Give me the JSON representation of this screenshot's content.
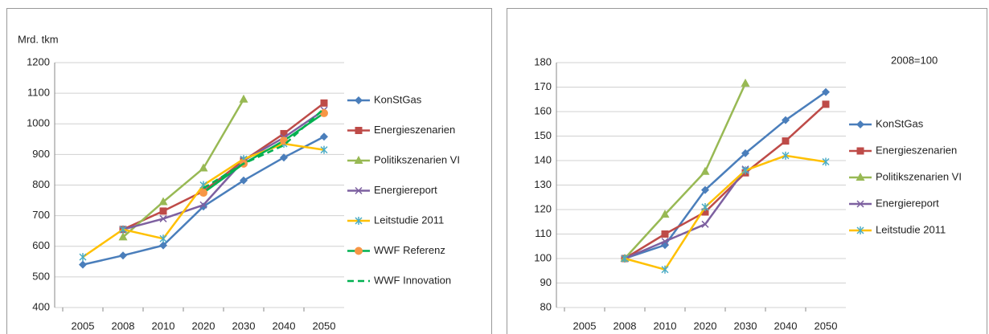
{
  "chart_data": [
    {
      "type": "line",
      "ylabel": "Mrd. tkm",
      "categories": [
        "2005",
        "2008",
        "2010",
        "2020",
        "2030",
        "2040",
        "2050"
      ],
      "ylim": [
        400,
        1200
      ],
      "yticks": [
        400,
        500,
        600,
        700,
        800,
        900,
        1000,
        1100,
        1200
      ],
      "grid": true,
      "legend": "right",
      "series": [
        {
          "name": "KonStGas",
          "color": "#4a7ebb",
          "marker": "diamond",
          "values": [
            540,
            570,
            603,
            730,
            815,
            890,
            958
          ]
        },
        {
          "name": "Energieszenarien",
          "color": "#be4b48",
          "marker": "square",
          "values": [
            null,
            655,
            715,
            780,
            880,
            968,
            1068
          ]
        },
        {
          "name": "Politikszenarien VI",
          "color": "#98b954",
          "marker": "triangle",
          "values": [
            null,
            630,
            745,
            855,
            1080,
            null,
            null
          ]
        },
        {
          "name": "Energiereport",
          "color": "#7d60a0",
          "marker": "x",
          "values": [
            null,
            655,
            690,
            735,
            880,
            955,
            1045
          ]
        },
        {
          "name": "Leitstudie 2011",
          "color": "#ffc000",
          "marker": "asterisk",
          "marker_color": "#4bacc6",
          "values": [
            565,
            655,
            625,
            800,
            885,
            935,
            915
          ]
        },
        {
          "name": "WWF Referenz",
          "color": "#00b050",
          "marker": "circle",
          "marker_color": "#f79646",
          "values": [
            null,
            null,
            null,
            775,
            870,
            945,
            1035
          ]
        },
        {
          "name": "WWF Innovation",
          "color": "#00b050",
          "marker": "none",
          "dash": true,
          "values": [
            null,
            null,
            null,
            790,
            870,
            930,
            1050
          ]
        }
      ]
    },
    {
      "type": "line",
      "annotation": "2008=100",
      "categories": [
        "2005",
        "2008",
        "2010",
        "2020",
        "2030",
        "2040",
        "2050"
      ],
      "ylim": [
        80,
        180
      ],
      "yticks": [
        80,
        90,
        100,
        110,
        120,
        130,
        140,
        150,
        160,
        170,
        180
      ],
      "grid": true,
      "legend": "right",
      "series": [
        {
          "name": "KonStGas",
          "color": "#4a7ebb",
          "marker": "diamond",
          "values": [
            null,
            100,
            105.5,
            128,
            143,
            156.5,
            168
          ]
        },
        {
          "name": "Energieszenarien",
          "color": "#be4b48",
          "marker": "square",
          "values": [
            null,
            100,
            110,
            119,
            135,
            148,
            163
          ]
        },
        {
          "name": "Politikszenarien VI",
          "color": "#98b954",
          "marker": "triangle",
          "values": [
            null,
            100,
            118,
            135.5,
            171.5,
            null,
            null
          ]
        },
        {
          "name": "Energiereport",
          "color": "#7d60a0",
          "marker": "x",
          "values": [
            null,
            100,
            107,
            114,
            136.5,
            null,
            null
          ]
        },
        {
          "name": "Leitstudie 2011",
          "color": "#ffc000",
          "marker": "asterisk",
          "marker_color": "#4bacc6",
          "values": [
            null,
            100,
            95.5,
            121,
            136,
            142,
            139.5
          ]
        }
      ]
    }
  ]
}
